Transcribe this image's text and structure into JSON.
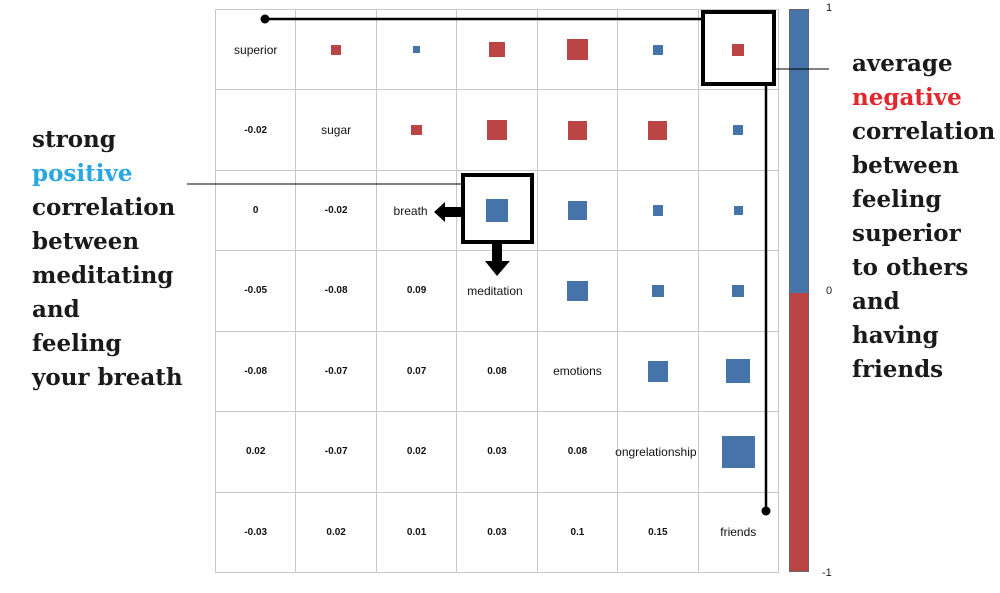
{
  "chart_data": {
    "type": "heatmap",
    "variables": [
      "superior",
      "sugar",
      "breath",
      "meditation",
      "emotions",
      "longrelationship",
      "friends"
    ],
    "variable_display_labels": [
      "superior",
      "sugar",
      "breath",
      "meditation",
      "emotions",
      "ongrelationship",
      "friends"
    ],
    "correlation_matrix": [
      [
        1,
        -0.02,
        0,
        -0.05,
        -0.08,
        0.02,
        -0.03
      ],
      [
        -0.02,
        1,
        -0.02,
        -0.08,
        -0.07,
        -0.07,
        0.02
      ],
      [
        0,
        -0.02,
        1,
        0.09,
        0.07,
        0.02,
        0.01
      ],
      [
        -0.05,
        -0.08,
        0.09,
        1,
        0.08,
        0.03,
        0.03
      ],
      [
        -0.08,
        -0.07,
        0.07,
        0.08,
        1,
        0.08,
        0.1
      ],
      [
        0.02,
        -0.07,
        0.02,
        0.03,
        0.08,
        1,
        0.15
      ],
      [
        -0.03,
        0.02,
        0.01,
        0.03,
        0.1,
        0.15,
        1
      ]
    ],
    "lower_triangle": "numbers",
    "upper_triangle": "squares sized by magnitude",
    "colorbar": {
      "ticks": [
        "1",
        "0",
        "-1"
      ],
      "range": [
        -1,
        1
      ]
    },
    "colors": {
      "positive": "#4674aa",
      "negative": "#bb4444",
      "grid": "#c8c8c8"
    },
    "highlights": [
      {
        "row": "superior",
        "col": "friends"
      },
      {
        "row": "breath",
        "col": "meditation"
      }
    ]
  },
  "annotations": {
    "left": {
      "lines": [
        "strong",
        "positive",
        "correlation",
        "between",
        "meditating",
        "and",
        "feeling",
        "your breath"
      ],
      "highlight_word": "positive",
      "highlight_color": "#2aa7e0"
    },
    "right": {
      "lines": [
        "average",
        "negative",
        "correlation",
        "between",
        "feeling",
        "superior",
        "to others",
        "and",
        "having",
        "friends"
      ],
      "highlight_word": "negative",
      "highlight_color": "#e0282e"
    }
  }
}
